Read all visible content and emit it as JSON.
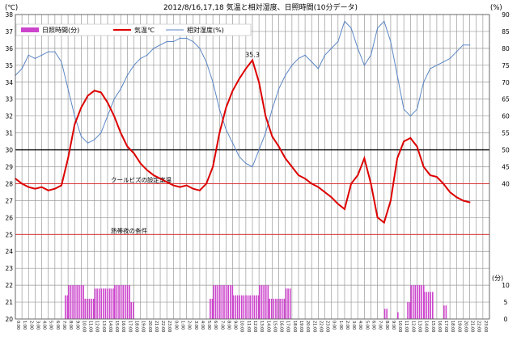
{
  "chart_data": {
    "type": "line",
    "title": "2012/8/16,17,18 気温と相対湿度、日照時間(10分データ)",
    "left_unit": "(℃)",
    "right_unit": "(%)",
    "right_lower_unit": "(分)",
    "y_left_range": [
      20,
      38
    ],
    "y_left_ticks": [
      20,
      21,
      22,
      23,
      24,
      25,
      26,
      27,
      28,
      29,
      30,
      31,
      32,
      33,
      34,
      35,
      36,
      37,
      38
    ],
    "y_right_range": [
      0,
      90
    ],
    "y_right_ticks": [
      0,
      5,
      10,
      15,
      20,
      25,
      30,
      35,
      40,
      45,
      50,
      55,
      60,
      65,
      70,
      75,
      80,
      85,
      90
    ],
    "y_right_sun_ticks": [
      0,
      5,
      10
    ],
    "x_tick_labels": [
      "0:00",
      "1:00",
      "2:00",
      "3:00",
      "4:00",
      "5:00",
      "6:00",
      "7:00",
      "8:00",
      "9:00",
      "10:00",
      "11:00",
      "12:00",
      "13:00",
      "14:00",
      "15:00",
      "16:00",
      "17:00",
      "18:00",
      "19:00",
      "20:00",
      "21:00",
      "22:00",
      "23:00",
      "0:00",
      "1:00",
      "2:00",
      "3:00",
      "4:00",
      "5:00",
      "6:00",
      "7:00",
      "8:00",
      "9:00",
      "10:00",
      "11:00",
      "12:00",
      "13:00",
      "14:00",
      "15:00",
      "16:00",
      "17:00",
      "18:00",
      "19:00",
      "20:00",
      "21:00",
      "22:00",
      "23:00",
      "0:00",
      "1:00",
      "2:00",
      "3:00",
      "4:00",
      "5:00",
      "6:00",
      "7:00",
      "8:00",
      "9:00",
      "10:00",
      "11:00",
      "12:00",
      "13:00",
      "14:00",
      "15:00",
      "16:00",
      "17:00",
      "18:00",
      "19:00",
      "20:00",
      "21:00",
      "22:00",
      "23:00"
    ],
    "grid": true,
    "legend_position": "top-left",
    "series": [
      {
        "name": "日照時間(分)",
        "axis": "sunshine",
        "color": "#cc44cc",
        "blocks": [
          [
            7.5,
            8.0,
            7
          ],
          [
            8.0,
            10.5,
            10
          ],
          [
            10.5,
            12.0,
            6
          ],
          [
            12.0,
            15.0,
            9
          ],
          [
            15.0,
            17.5,
            10
          ],
          [
            17.5,
            18.0,
            5
          ],
          [
            29.5,
            30.0,
            6
          ],
          [
            30.0,
            33.0,
            10
          ],
          [
            33.0,
            37.0,
            7
          ],
          [
            37.0,
            38.5,
            10
          ],
          [
            38.5,
            41.0,
            6
          ],
          [
            41.0,
            42.0,
            9
          ],
          [
            56.0,
            56.5,
            3
          ],
          [
            58.0,
            58.3,
            2
          ],
          [
            59.5,
            60.0,
            5
          ],
          [
            60.0,
            62.0,
            10
          ],
          [
            62.0,
            63.5,
            8
          ],
          [
            65.0,
            65.5,
            4
          ]
        ]
      },
      {
        "name": "気温℃",
        "axis": "left",
        "color": "#dd0000",
        "points": [
          [
            0,
            28.3
          ],
          [
            1,
            28.0
          ],
          [
            2,
            27.8
          ],
          [
            3,
            27.7
          ],
          [
            4,
            27.8
          ],
          [
            5,
            27.6
          ],
          [
            6,
            27.7
          ],
          [
            7,
            27.9
          ],
          [
            8,
            29.5
          ],
          [
            9,
            31.5
          ],
          [
            10,
            32.5
          ],
          [
            11,
            33.2
          ],
          [
            12,
            33.5
          ],
          [
            13,
            33.4
          ],
          [
            14,
            32.8
          ],
          [
            15,
            32.0
          ],
          [
            16,
            31.0
          ],
          [
            17,
            30.2
          ],
          [
            18,
            29.8
          ],
          [
            19,
            29.2
          ],
          [
            20,
            28.8
          ],
          [
            21,
            28.5
          ],
          [
            22,
            28.3
          ],
          [
            23,
            28.1
          ],
          [
            24,
            27.9
          ],
          [
            25,
            27.8
          ],
          [
            26,
            27.9
          ],
          [
            27,
            27.7
          ],
          [
            28,
            27.6
          ],
          [
            29,
            28.0
          ],
          [
            30,
            29.0
          ],
          [
            31,
            31.0
          ],
          [
            32,
            32.5
          ],
          [
            33,
            33.5
          ],
          [
            34,
            34.2
          ],
          [
            35,
            34.8
          ],
          [
            36,
            35.3
          ],
          [
            37,
            34.0
          ],
          [
            38,
            32.0
          ],
          [
            39,
            30.8
          ],
          [
            40,
            30.2
          ],
          [
            41,
            29.5
          ],
          [
            42,
            29.0
          ],
          [
            43,
            28.5
          ],
          [
            44,
            28.3
          ],
          [
            45,
            28.0
          ],
          [
            46,
            27.8
          ],
          [
            47,
            27.5
          ],
          [
            48,
            27.2
          ],
          [
            49,
            26.8
          ],
          [
            50,
            26.5
          ],
          [
            51,
            28.0
          ],
          [
            52,
            28.5
          ],
          [
            53,
            29.5
          ],
          [
            54,
            28.0
          ],
          [
            55,
            26.0
          ],
          [
            56,
            25.7
          ],
          [
            57,
            27.0
          ],
          [
            58,
            29.5
          ],
          [
            59,
            30.5
          ],
          [
            60,
            30.7
          ],
          [
            61,
            30.2
          ],
          [
            62,
            29.0
          ],
          [
            63,
            28.5
          ],
          [
            64,
            28.4
          ],
          [
            65,
            28.0
          ],
          [
            66,
            27.5
          ],
          [
            67,
            27.2
          ],
          [
            68,
            27.0
          ],
          [
            69,
            26.9
          ]
        ]
      },
      {
        "name": "相対湿度(%)",
        "axis": "right",
        "color": "#5b86c5",
        "points": [
          [
            0,
            72
          ],
          [
            1,
            74
          ],
          [
            2,
            78
          ],
          [
            3,
            77
          ],
          [
            4,
            78
          ],
          [
            5,
            79
          ],
          [
            6,
            79
          ],
          [
            7,
            76
          ],
          [
            8,
            68
          ],
          [
            9,
            60
          ],
          [
            10,
            54
          ],
          [
            11,
            52
          ],
          [
            12,
            53
          ],
          [
            13,
            55
          ],
          [
            14,
            60
          ],
          [
            15,
            65
          ],
          [
            16,
            68
          ],
          [
            17,
            72
          ],
          [
            18,
            75
          ],
          [
            19,
            77
          ],
          [
            20,
            78
          ],
          [
            21,
            80
          ],
          [
            22,
            81
          ],
          [
            23,
            82
          ],
          [
            24,
            82
          ],
          [
            25,
            83
          ],
          [
            26,
            83
          ],
          [
            27,
            82
          ],
          [
            28,
            80
          ],
          [
            29,
            76
          ],
          [
            30,
            70
          ],
          [
            31,
            62
          ],
          [
            32,
            56
          ],
          [
            33,
            52
          ],
          [
            34,
            48
          ],
          [
            35,
            46
          ],
          [
            36,
            45
          ],
          [
            37,
            50
          ],
          [
            38,
            55
          ],
          [
            39,
            62
          ],
          [
            40,
            68
          ],
          [
            41,
            72
          ],
          [
            42,
            75
          ],
          [
            43,
            77
          ],
          [
            44,
            78
          ],
          [
            45,
            76
          ],
          [
            46,
            74
          ],
          [
            47,
            78
          ],
          [
            48,
            80
          ],
          [
            49,
            82
          ],
          [
            50,
            88
          ],
          [
            51,
            86
          ],
          [
            52,
            80
          ],
          [
            53,
            75
          ],
          [
            54,
            78
          ],
          [
            55,
            86
          ],
          [
            56,
            88
          ],
          [
            57,
            82
          ],
          [
            58,
            72
          ],
          [
            59,
            62
          ],
          [
            60,
            60
          ],
          [
            61,
            62
          ],
          [
            62,
            70
          ],
          [
            63,
            74
          ],
          [
            64,
            75
          ],
          [
            65,
            76
          ],
          [
            66,
            77
          ],
          [
            67,
            79
          ],
          [
            68,
            81
          ],
          [
            69,
            81
          ]
        ]
      }
    ],
    "reference_lines": [
      {
        "label": "",
        "axis": "left",
        "value": 30,
        "color": "#000000"
      },
      {
        "label": "クールビズの設定室温",
        "axis": "left",
        "value": 28,
        "color": "#dd2222"
      },
      {
        "label": "熱帯夜の条件",
        "axis": "left",
        "value": 25,
        "color": "#dd2222"
      }
    ],
    "annotations": [
      {
        "text": "35.3",
        "x": 36,
        "y": 35.3
      }
    ]
  }
}
